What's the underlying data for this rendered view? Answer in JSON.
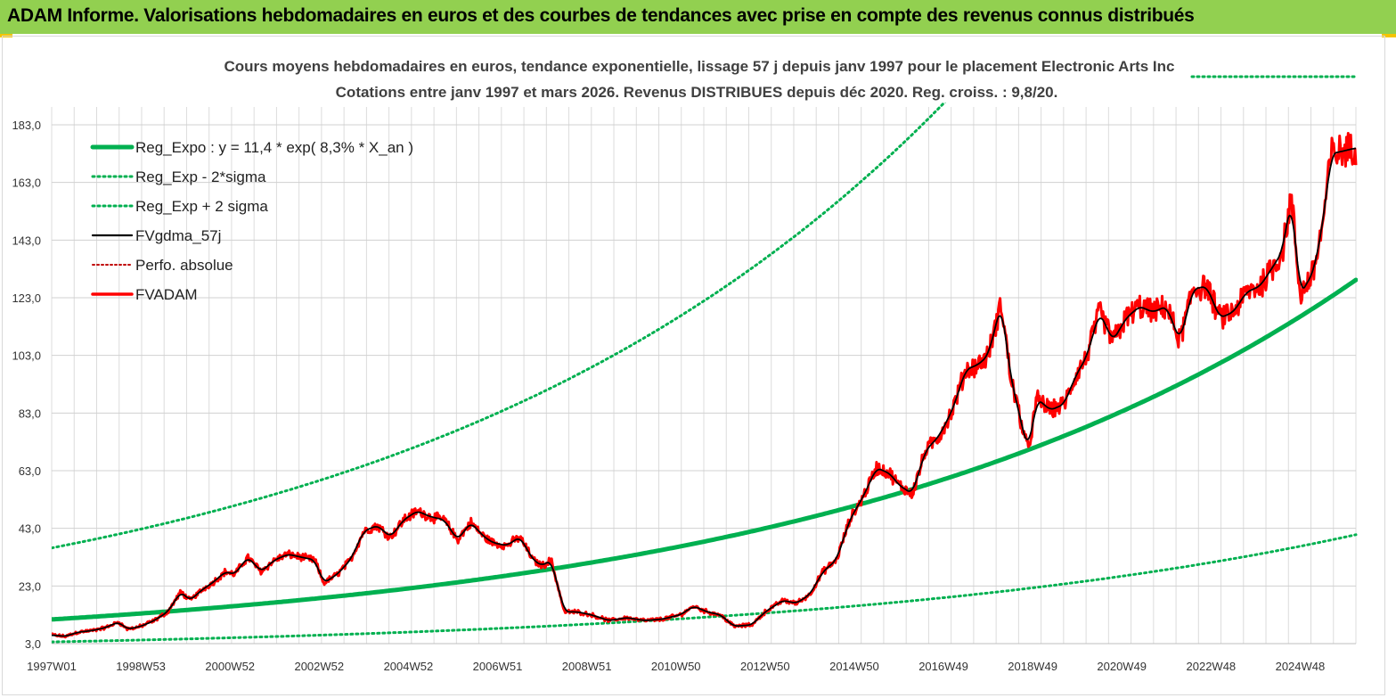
{
  "banner": {
    "title": "ADAM Informe. Valorisations hebdomadaires en euros et des courbes de tendances avec prise en compte des revenus connus distribués",
    "background": "#92d050"
  },
  "chart_data": {
    "type": "line",
    "subtitle_line1": "Cours moyens hebdomadaires en euros, tendance exponentielle, lissage 57 j depuis janv 1997 pour le placement Electronic Arts Inc",
    "subtitle_line2": "Cotations entre janv 1997 et mars 2026. Revenus DISTRIBUES depuis déc 2020. Reg. croiss. : 9,8/20.",
    "x_tick_labels": [
      "1997W01",
      "1998W53",
      "2000W52",
      "2002W52",
      "2004W52",
      "2006W51",
      "2008W51",
      "2010W50",
      "2012W50",
      "2014W50",
      "2016W49",
      "2018W49",
      "2020W49",
      "2022W48",
      "2024W48"
    ],
    "y_tick_labels": [
      "3,0",
      "23,0",
      "43,0",
      "63,0",
      "83,0",
      "103,0",
      "123,0",
      "143,0",
      "163,0",
      "183,0"
    ],
    "xlim": [
      1997.0,
      2026.25
    ],
    "ylim": [
      3,
      183
    ],
    "grid": true,
    "legend_position": "top-left",
    "series": [
      {
        "name": "Reg_Expo : y = 11,4 * exp( 8,3% *  X_an )",
        "color": "#00b050",
        "style": "solid-thick",
        "kind": "exp",
        "a": 11.4,
        "rate": 0.083
      },
      {
        "name": "Reg_Exp - 2*sigma",
        "color": "#00b050",
        "style": "dotted",
        "kind": "exp",
        "a": 3.6,
        "rate": 0.083
      },
      {
        "name": "Reg_Exp + 2 sigma",
        "color": "#00b050",
        "style": "dotted",
        "kind": "exp",
        "a": 36.2,
        "rate": 0.083
      },
      {
        "name": "FVgdma_57j",
        "color": "#000000",
        "style": "solid",
        "kind": "smooth"
      },
      {
        "name": "Perfo. absolue",
        "color": "#c00000",
        "style": "dotted",
        "kind": "none"
      },
      {
        "name": "FVADAM",
        "color": "#ff0000",
        "style": "solid-thick",
        "kind": "price"
      }
    ],
    "price_points": [
      [
        1997.0,
        6
      ],
      [
        1997.3,
        5.5
      ],
      [
        1997.6,
        7
      ],
      [
        1997.9,
        7.5
      ],
      [
        1998.2,
        8.5
      ],
      [
        1998.5,
        10.5
      ],
      [
        1998.7,
        8
      ],
      [
        1999.0,
        9
      ],
      [
        1999.3,
        11
      ],
      [
        1999.6,
        14
      ],
      [
        1999.9,
        21
      ],
      [
        2000.1,
        18
      ],
      [
        2000.4,
        22
      ],
      [
        2000.6,
        24
      ],
      [
        2000.9,
        28
      ],
      [
        2001.1,
        27
      ],
      [
        2001.4,
        33
      ],
      [
        2001.7,
        28
      ],
      [
        2002.0,
        32
      ],
      [
        2002.3,
        34
      ],
      [
        2002.6,
        33
      ],
      [
        2002.9,
        32
      ],
      [
        2003.1,
        24
      ],
      [
        2003.4,
        27
      ],
      [
        2003.7,
        32
      ],
      [
        2004.0,
        42
      ],
      [
        2004.3,
        44
      ],
      [
        2004.6,
        40
      ],
      [
        2004.9,
        46
      ],
      [
        2005.2,
        49
      ],
      [
        2005.5,
        47
      ],
      [
        2005.8,
        46
      ],
      [
        2006.1,
        39
      ],
      [
        2006.4,
        45
      ],
      [
        2006.7,
        40
      ],
      [
        2006.9,
        38
      ],
      [
        2007.2,
        37
      ],
      [
        2007.5,
        40
      ],
      [
        2007.8,
        32
      ],
      [
        2008.0,
        30
      ],
      [
        2008.2,
        32
      ],
      [
        2008.5,
        14
      ],
      [
        2008.8,
        14
      ],
      [
        2009.1,
        13
      ],
      [
        2009.5,
        11
      ],
      [
        2009.9,
        12
      ],
      [
        2010.3,
        11
      ],
      [
        2010.7,
        11.5
      ],
      [
        2011.1,
        13
      ],
      [
        2011.4,
        16
      ],
      [
        2011.7,
        14
      ],
      [
        2012.0,
        13
      ],
      [
        2012.3,
        9
      ],
      [
        2012.7,
        9.5
      ],
      [
        2013.0,
        14
      ],
      [
        2013.4,
        18
      ],
      [
        2013.7,
        17
      ],
      [
        2014.0,
        20
      ],
      [
        2014.3,
        28
      ],
      [
        2014.6,
        32
      ],
      [
        2014.9,
        46
      ],
      [
        2015.2,
        54
      ],
      [
        2015.5,
        64
      ],
      [
        2015.8,
        62
      ],
      [
        2016.0,
        58
      ],
      [
        2016.3,
        55
      ],
      [
        2016.6,
        70
      ],
      [
        2016.9,
        75
      ],
      [
        2017.2,
        84
      ],
      [
        2017.5,
        98
      ],
      [
        2017.8,
        100
      ],
      [
        2018.0,
        103
      ],
      [
        2018.3,
        121
      ],
      [
        2018.5,
        96
      ],
      [
        2018.8,
        76
      ],
      [
        2018.9,
        70
      ],
      [
        2019.1,
        88
      ],
      [
        2019.4,
        84
      ],
      [
        2019.7,
        86
      ],
      [
        2020.0,
        97
      ],
      [
        2020.2,
        102
      ],
      [
        2020.5,
        118
      ],
      [
        2020.8,
        108
      ],
      [
        2021.1,
        116
      ],
      [
        2021.4,
        120
      ],
      [
        2021.7,
        118
      ],
      [
        2022.0,
        120
      ],
      [
        2022.3,
        108
      ],
      [
        2022.6,
        126
      ],
      [
        2022.9,
        127
      ],
      [
        2023.2,
        116
      ],
      [
        2023.5,
        118
      ],
      [
        2023.8,
        125
      ],
      [
        2024.1,
        127
      ],
      [
        2024.4,
        134
      ],
      [
        2024.6,
        139
      ],
      [
        2024.8,
        158
      ],
      [
        2025.0,
        124
      ],
      [
        2025.3,
        132
      ],
      [
        2025.5,
        148
      ],
      [
        2025.7,
        173
      ],
      [
        2026.0,
        174
      ],
      [
        2026.25,
        175
      ]
    ]
  }
}
